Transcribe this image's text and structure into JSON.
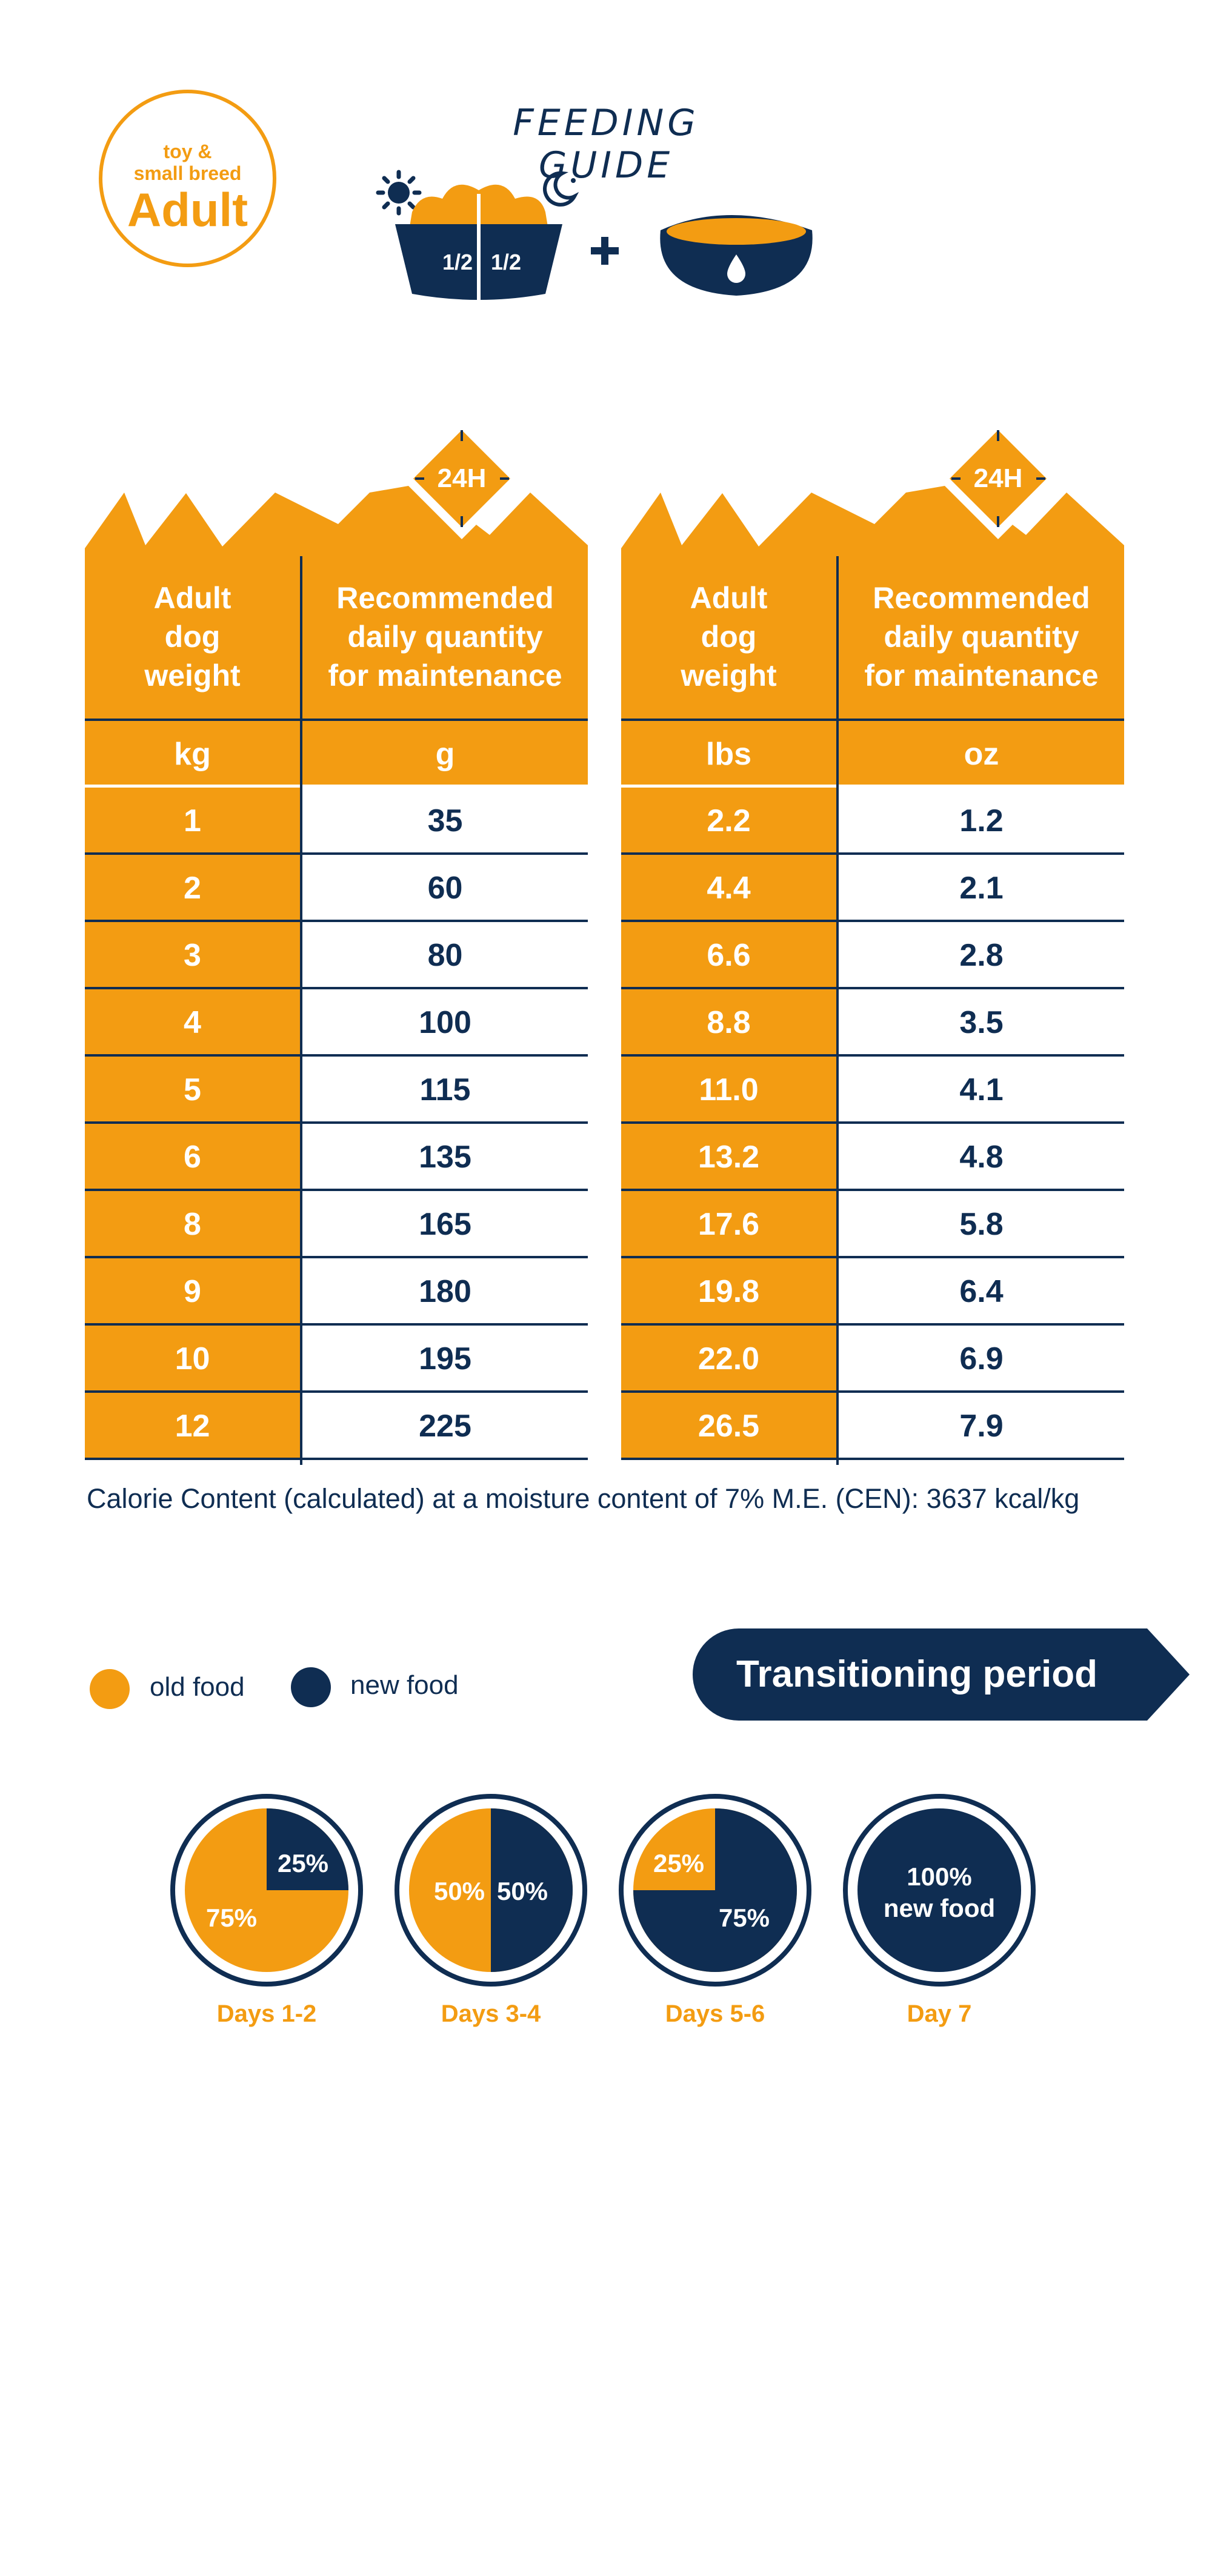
{
  "colors": {
    "orange": "#F39C12",
    "navy": "#0F2D52",
    "white": "#ffffff"
  },
  "badge": {
    "line1": "toy &",
    "line2": "small breed",
    "title": "Adult"
  },
  "feeding_guide": {
    "title": "FEEDING GUIDE",
    "icons": [
      "sun-icon",
      "moon-icon",
      "food-bowl-icon",
      "plus-icon",
      "water-bowl-icon"
    ],
    "half_label": "1/2"
  },
  "tables": [
    {
      "tag": "24H",
      "col1_header": [
        "Adult",
        "dog",
        "weight"
      ],
      "col2_header": [
        "Recommended",
        "daily quantity",
        "for maintenance"
      ],
      "col1_unit": "kg",
      "col2_unit": "g",
      "rows": [
        [
          "1",
          "35"
        ],
        [
          "2",
          "60"
        ],
        [
          "3",
          "80"
        ],
        [
          "4",
          "100"
        ],
        [
          "5",
          "115"
        ],
        [
          "6",
          "135"
        ],
        [
          "8",
          "165"
        ],
        [
          "9",
          "180"
        ],
        [
          "10",
          "195"
        ],
        [
          "12",
          "225"
        ]
      ]
    },
    {
      "tag": "24H",
      "col1_header": [
        "Adult",
        "dog",
        "weight"
      ],
      "col2_header": [
        "Recommended",
        "daily quantity",
        "for maintenance"
      ],
      "col1_unit": "lbs",
      "col2_unit": "oz",
      "rows": [
        [
          "2.2",
          "1.2"
        ],
        [
          "4.4",
          "2.1"
        ],
        [
          "6.6",
          "2.8"
        ],
        [
          "8.8",
          "3.5"
        ],
        [
          "11.0",
          "4.1"
        ],
        [
          "13.2",
          "4.8"
        ],
        [
          "17.6",
          "5.8"
        ],
        [
          "19.8",
          "6.4"
        ],
        [
          "22.0",
          "6.9"
        ],
        [
          "26.5",
          "7.9"
        ]
      ]
    }
  ],
  "calorie_note": "Calorie Content (calculated) at a moisture content of 7% M.E. (CEN): 3637 kcal/kg",
  "legend": {
    "old_food": "old food",
    "new_food": "new food"
  },
  "transition": {
    "title": "Transitioning period",
    "stages": [
      {
        "day": "Days 1-2",
        "old_pct": 75,
        "new_pct": 25,
        "old_label": "75%",
        "new_label": "25%"
      },
      {
        "day": "Days 3-4",
        "old_pct": 50,
        "new_pct": 50,
        "old_label": "50%",
        "new_label": "50%"
      },
      {
        "day": "Days 5-6",
        "old_pct": 25,
        "new_pct": 75,
        "old_label": "25%",
        "new_label": "75%"
      },
      {
        "day": "Day 7",
        "old_pct": 0,
        "new_pct": 100,
        "full_label_1": "100%",
        "full_label_2": "new food"
      }
    ]
  }
}
